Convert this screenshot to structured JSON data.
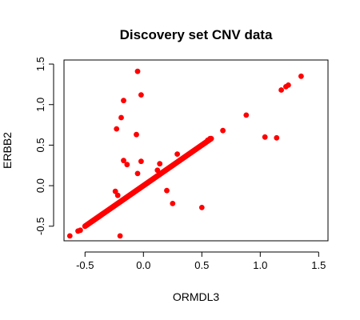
{
  "chart_data": {
    "type": "scatter",
    "title": "Discovery set CNV data",
    "xlabel": "ORMDL3",
    "ylabel": "ERBB2",
    "xlim": [
      -0.68,
      1.58
    ],
    "ylim": [
      -0.68,
      1.55
    ],
    "x_ticks": [
      -0.5,
      0.0,
      0.5,
      1.0,
      1.5
    ],
    "x_tick_labels": [
      "-0.5",
      "0.0",
      "0.5",
      "1.0",
      "1.5"
    ],
    "y_ticks": [
      -0.5,
      0.0,
      0.5,
      1.0,
      1.5
    ],
    "y_tick_labels": [
      "-0.5",
      "0.0",
      "0.5",
      "1.0",
      "1.5"
    ],
    "grid": false,
    "point_color": "#ff0000",
    "diagonal_band": {
      "x_from": -0.5,
      "x_to": 0.58
    },
    "points": [
      {
        "x": -0.63,
        "y": -0.62
      },
      {
        "x": -0.56,
        "y": -0.56
      },
      {
        "x": -0.54,
        "y": -0.55
      },
      {
        "x": -0.24,
        "y": -0.07
      },
      {
        "x": -0.22,
        "y": -0.12
      },
      {
        "x": -0.2,
        "y": -0.62
      },
      {
        "x": -0.23,
        "y": 0.7
      },
      {
        "x": -0.19,
        "y": 0.84
      },
      {
        "x": -0.17,
        "y": 1.05
      },
      {
        "x": -0.17,
        "y": 0.31
      },
      {
        "x": -0.14,
        "y": 0.26
      },
      {
        "x": -0.06,
        "y": 0.63
      },
      {
        "x": -0.05,
        "y": 1.41
      },
      {
        "x": -0.05,
        "y": 0.15
      },
      {
        "x": -0.02,
        "y": 1.12
      },
      {
        "x": -0.02,
        "y": 0.3
      },
      {
        "x": 0.12,
        "y": 0.19
      },
      {
        "x": 0.14,
        "y": 0.27
      },
      {
        "x": 0.2,
        "y": -0.06
      },
      {
        "x": 0.25,
        "y": -0.22
      },
      {
        "x": 0.29,
        "y": 0.39
      },
      {
        "x": 0.5,
        "y": -0.27
      },
      {
        "x": 0.55,
        "y": 0.56
      },
      {
        "x": 0.57,
        "y": 0.58
      },
      {
        "x": 0.68,
        "y": 0.68
      },
      {
        "x": 0.88,
        "y": 0.87
      },
      {
        "x": 1.04,
        "y": 0.6
      },
      {
        "x": 1.14,
        "y": 0.59
      },
      {
        "x": 1.18,
        "y": 1.18
      },
      {
        "x": 1.22,
        "y": 1.22
      },
      {
        "x": 1.24,
        "y": 1.24
      },
      {
        "x": 1.35,
        "y": 1.35
      }
    ]
  }
}
